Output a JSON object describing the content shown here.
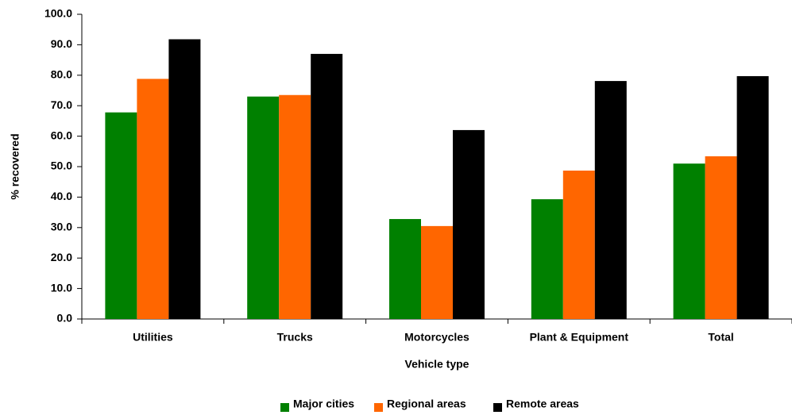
{
  "chart_data": {
    "type": "bar",
    "categories": [
      "Utilities",
      "Trucks",
      "Motorcycles",
      "Plant & Equipment",
      "Total"
    ],
    "series": [
      {
        "name": "Major cities",
        "color": "#008000",
        "values": [
          67.8,
          73.0,
          32.8,
          39.3,
          51.0
        ]
      },
      {
        "name": "Regional areas",
        "color": "#ff6600",
        "values": [
          78.8,
          73.5,
          30.5,
          48.7,
          53.4
        ]
      },
      {
        "name": "Remote areas",
        "color": "#000000",
        "values": [
          91.8,
          87.0,
          62.0,
          78.1,
          79.7
        ]
      }
    ],
    "x_label": "Vehicle type",
    "y_label": "% recovered",
    "ylim": [
      0,
      100
    ],
    "yticks": [
      {
        "value": 0,
        "label": "0.0"
      },
      {
        "value": 10,
        "label": "10.0"
      },
      {
        "value": 20,
        "label": "20.0"
      },
      {
        "value": 30,
        "label": "30.0"
      },
      {
        "value": 40,
        "label": "40.0"
      },
      {
        "value": 50,
        "label": "50.0"
      },
      {
        "value": 60,
        "label": "60.0"
      },
      {
        "value": 70,
        "label": "70.0"
      },
      {
        "value": 80,
        "label": "80.0"
      },
      {
        "value": 90,
        "label": "90.0"
      },
      {
        "value": 100,
        "label": "100.0"
      }
    ],
    "grid": false,
    "legend": "bottom"
  }
}
